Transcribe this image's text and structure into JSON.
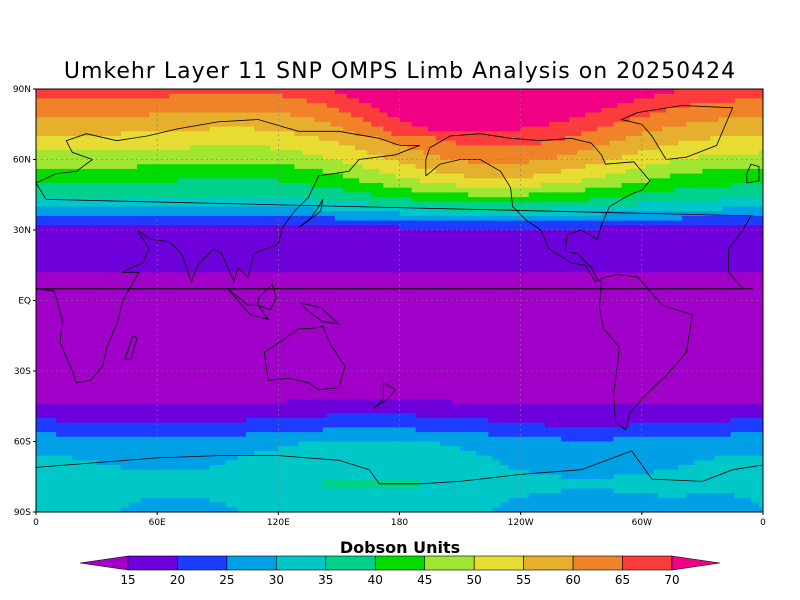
{
  "title": "Umkehr Layer 11 SNP OMPS Limb Analysis on 20250424",
  "colorbar_title": "Dobson Units",
  "lat_labels": [
    {
      "lat": 90,
      "text": "90N"
    },
    {
      "lat": 60,
      "text": "60N"
    },
    {
      "lat": 30,
      "text": "30N"
    },
    {
      "lat": 0,
      "text": "EQ"
    },
    {
      "lat": -30,
      "text": "30S"
    },
    {
      "lat": -60,
      "text": "60S"
    },
    {
      "lat": -90,
      "text": "90S"
    }
  ],
  "lon_labels": [
    {
      "lon": 0,
      "text": "0"
    },
    {
      "lon": 60,
      "text": "60E"
    },
    {
      "lon": 120,
      "text": "120E"
    },
    {
      "lon": 180,
      "text": "180"
    },
    {
      "lon": 240,
      "text": "120W"
    },
    {
      "lon": 300,
      "text": "60W"
    },
    {
      "lon": 360,
      "text": "0"
    }
  ],
  "chart_data": {
    "type": "heatmap",
    "title": "Umkehr Layer 11 SNP OMPS Limb Analysis on 20250424",
    "units": "Dobson Units",
    "xlim": [
      0,
      360
    ],
    "ylim": [
      -90,
      90
    ],
    "grid": true,
    "levels": [
      15,
      20,
      25,
      30,
      35,
      40,
      45,
      50,
      55,
      60,
      65,
      70
    ],
    "colors": [
      "#a000c8",
      "#6e00dc",
      "#1e3cff",
      "#00a0e6",
      "#00c8c8",
      "#00d28c",
      "#00dc00",
      "#a0e632",
      "#e6dc32",
      "#e6af2d",
      "#f08228",
      "#fa3c3c",
      "#f00082"
    ],
    "profile_lat": [
      90,
      84,
      78,
      72,
      66,
      60,
      54,
      50,
      46,
      42,
      38,
      34,
      30,
      0,
      -30,
      -42,
      -48,
      -54,
      -60,
      -66,
      -72,
      -78,
      -84,
      -90
    ],
    "profile_value": [
      72,
      68,
      64,
      60,
      56,
      52,
      47,
      44,
      40,
      36,
      30,
      24,
      18,
      13,
      13,
      14,
      18,
      22,
      28,
      30,
      31,
      33,
      31,
      30
    ]
  }
}
